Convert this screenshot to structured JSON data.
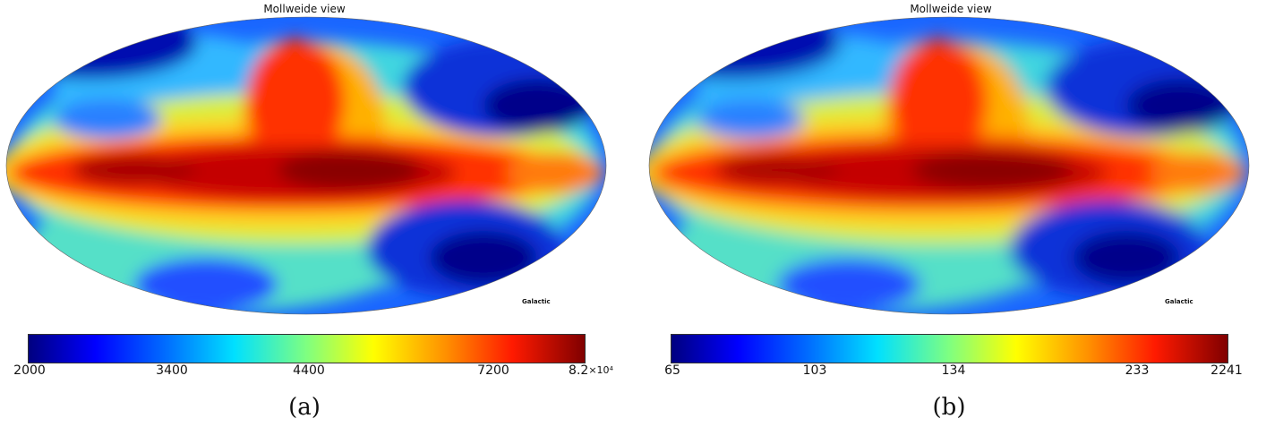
{
  "panels": [
    {
      "title": "Mollweide view",
      "coord_label": "Galactic",
      "caption": "(a)",
      "colorbar": {
        "colormap": "jet",
        "ticks": [
          "2000",
          "3400",
          "4400",
          "7200",
          "8.2"
        ],
        "multiplier": "×10⁴"
      },
      "colors": {
        "max": "#800000",
        "high": "#ff2000",
        "mid": "#ffff00",
        "cyan": "#40e0d0",
        "low": "#0000cc",
        "min": "#000080"
      }
    },
    {
      "title": "Mollweide view",
      "coord_label": "Galactic",
      "caption": "(b)",
      "colorbar": {
        "colormap": "jet",
        "ticks": [
          "65",
          "103",
          "134",
          "233",
          "2241"
        ],
        "multiplier": ""
      },
      "colors": {
        "max": "#800000",
        "high": "#ff2000",
        "mid": "#ffff00",
        "cyan": "#40e0d0",
        "low": "#0000cc",
        "min": "#000080"
      }
    }
  ]
}
